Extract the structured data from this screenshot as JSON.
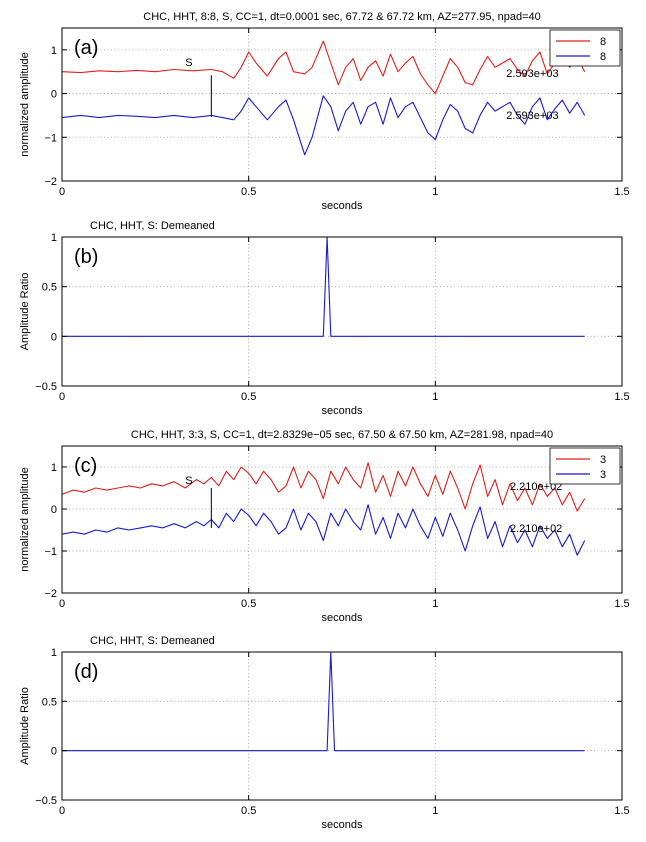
{
  "colors": {
    "red": "#e0201b",
    "blue": "#1a1ad0",
    "axis": "#000000",
    "grid": "#999999"
  },
  "chart_data": [
    {
      "type": "line",
      "panel_label": "(a)",
      "title": "CHC, HHT, 8:8, S, CC=1,  dt=0.0001 sec,  67.72 & 67.72 km, AZ=277.95, npad=40",
      "xlabel": "seconds",
      "ylabel": "normalized amplitude",
      "xlim": [
        0,
        1.5
      ],
      "ylim": [
        -2,
        1.5
      ],
      "xticks": [
        0,
        0.5,
        1,
        1.5
      ],
      "xtick_labels": [
        "0",
        "0.5",
        "1",
        "1.5"
      ],
      "yticks": [
        -2,
        -1,
        0,
        1
      ],
      "ytick_labels": [
        "−2",
        "−1",
        "0",
        "1"
      ],
      "grid": "dotted",
      "legend": {
        "position": "top-right",
        "entries": [
          {
            "label": "8",
            "color": "#e0201b"
          },
          {
            "label": "8",
            "color": "#1a1ad0"
          }
        ]
      },
      "series": [
        {
          "name": "8",
          "color": "#e0201b",
          "x": [
            0,
            0.05,
            0.1,
            0.15,
            0.2,
            0.25,
            0.3,
            0.35,
            0.4,
            0.43,
            0.46,
            0.48,
            0.5,
            0.52,
            0.55,
            0.58,
            0.6,
            0.62,
            0.65,
            0.67,
            0.7,
            0.72,
            0.74,
            0.76,
            0.78,
            0.8,
            0.82,
            0.84,
            0.86,
            0.88,
            0.9,
            0.92,
            0.94,
            0.96,
            0.98,
            1.0,
            1.02,
            1.04,
            1.06,
            1.08,
            1.1,
            1.12,
            1.14,
            1.16,
            1.18,
            1.2,
            1.22,
            1.24,
            1.26,
            1.28,
            1.3,
            1.32,
            1.34,
            1.36,
            1.38,
            1.4
          ],
          "values": [
            0.5,
            0.48,
            0.52,
            0.5,
            0.53,
            0.5,
            0.55,
            0.52,
            0.55,
            0.5,
            0.35,
            0.6,
            0.95,
            0.7,
            0.4,
            0.8,
            0.95,
            0.5,
            0.45,
            0.6,
            1.2,
            0.7,
            0.2,
            0.6,
            0.8,
            0.3,
            0.6,
            0.75,
            0.4,
            0.9,
            0.5,
            0.7,
            0.85,
            0.45,
            0.2,
            0.0,
            0.4,
            0.8,
            0.6,
            0.25,
            0.2,
            0.55,
            0.85,
            0.6,
            0.7,
            0.8,
            0.55,
            0.4,
            0.75,
            0.95,
            0.45,
            0.7,
            0.9,
            0.6,
            0.85,
            0.5
          ]
        },
        {
          "name": "8",
          "color": "#1a1ad0",
          "x": [
            0,
            0.05,
            0.1,
            0.15,
            0.2,
            0.25,
            0.3,
            0.35,
            0.4,
            0.43,
            0.46,
            0.48,
            0.5,
            0.52,
            0.55,
            0.58,
            0.6,
            0.62,
            0.65,
            0.67,
            0.7,
            0.72,
            0.74,
            0.76,
            0.78,
            0.8,
            0.82,
            0.84,
            0.86,
            0.88,
            0.9,
            0.92,
            0.94,
            0.96,
            0.98,
            1.0,
            1.02,
            1.04,
            1.06,
            1.08,
            1.1,
            1.12,
            1.14,
            1.16,
            1.18,
            1.2,
            1.22,
            1.24,
            1.26,
            1.28,
            1.3,
            1.32,
            1.34,
            1.36,
            1.38,
            1.4
          ],
          "values": [
            -0.55,
            -0.5,
            -0.55,
            -0.5,
            -0.52,
            -0.55,
            -0.5,
            -0.55,
            -0.5,
            -0.55,
            -0.6,
            -0.4,
            -0.1,
            -0.3,
            -0.6,
            -0.3,
            -0.15,
            -0.6,
            -1.4,
            -1.0,
            -0.05,
            -0.3,
            -0.85,
            -0.4,
            -0.2,
            -0.7,
            -0.3,
            -0.2,
            -0.7,
            -0.1,
            -0.55,
            -0.3,
            -0.2,
            -0.55,
            -0.9,
            -1.05,
            -0.6,
            -0.25,
            -0.4,
            -0.8,
            -0.9,
            -0.5,
            -0.2,
            -0.4,
            -0.3,
            -0.2,
            -0.5,
            -0.7,
            -0.3,
            -0.1,
            -0.6,
            -0.35,
            -0.15,
            -0.45,
            -0.2,
            -0.5
          ]
        }
      ],
      "annotations": [
        {
          "text": "S",
          "x": 0.33,
          "y": 0.63
        },
        {
          "text": "2.593e+03",
          "x": 1.19,
          "y": 0.38
        },
        {
          "text": "2.593e+03",
          "x": 1.19,
          "y": -0.58
        }
      ],
      "marker_line": {
        "x": 0.4,
        "y1": 0.42,
        "y2": -0.53
      }
    },
    {
      "type": "line",
      "panel_label": "(b)",
      "title": "CHC, HHT, S: Demeaned",
      "xlabel": "seconds",
      "ylabel": "Amplitude Ratio",
      "xlim": [
        0,
        1.5
      ],
      "ylim": [
        -0.5,
        1
      ],
      "xticks": [
        0,
        0.5,
        1,
        1.5
      ],
      "xtick_labels": [
        "0",
        "0.5",
        "1",
        "1.5"
      ],
      "yticks": [
        -0.5,
        0,
        0.5,
        1
      ],
      "ytick_labels": [
        "−0.5",
        "0",
        "0.5",
        "1"
      ],
      "grid": "dotted",
      "series": [
        {
          "color": "#1a1ad0",
          "x": [
            0,
            0.69,
            0.7,
            0.71,
            0.72,
            1.4
          ],
          "values": [
            0,
            0,
            0,
            1,
            0,
            0
          ]
        }
      ]
    },
    {
      "type": "line",
      "panel_label": "(c)",
      "title": "CHC, HHT, 3:3, S, CC=1,  dt=2.8329e−05 sec,  67.50 & 67.50 km, AZ=281.98, npad=40",
      "xlabel": "seconds",
      "ylabel": "normalized amplitude",
      "xlim": [
        0,
        1.5
      ],
      "ylim": [
        -2,
        1.5
      ],
      "xticks": [
        0,
        0.5,
        1,
        1.5
      ],
      "xtick_labels": [
        "0",
        "0.5",
        "1",
        "1.5"
      ],
      "yticks": [
        -2,
        -1,
        0,
        1
      ],
      "ytick_labels": [
        "−2",
        "−1",
        "0",
        "1"
      ],
      "grid": "dotted",
      "legend": {
        "position": "top-right",
        "entries": [
          {
            "label": "3",
            "color": "#e0201b"
          },
          {
            "label": "3",
            "color": "#1a1ad0"
          }
        ]
      },
      "series": [
        {
          "name": "3",
          "color": "#e0201b",
          "x": [
            0,
            0.03,
            0.06,
            0.09,
            0.12,
            0.15,
            0.18,
            0.21,
            0.24,
            0.27,
            0.3,
            0.33,
            0.36,
            0.38,
            0.4,
            0.42,
            0.44,
            0.46,
            0.48,
            0.5,
            0.52,
            0.54,
            0.56,
            0.58,
            0.6,
            0.62,
            0.64,
            0.66,
            0.68,
            0.7,
            0.72,
            0.74,
            0.76,
            0.78,
            0.8,
            0.82,
            0.84,
            0.86,
            0.88,
            0.9,
            0.92,
            0.94,
            0.96,
            0.98,
            1.0,
            1.02,
            1.04,
            1.06,
            1.08,
            1.1,
            1.12,
            1.14,
            1.16,
            1.18,
            1.2,
            1.22,
            1.24,
            1.26,
            1.28,
            1.3,
            1.32,
            1.34,
            1.36,
            1.38,
            1.4
          ],
          "values": [
            0.35,
            0.45,
            0.4,
            0.5,
            0.45,
            0.5,
            0.55,
            0.5,
            0.6,
            0.55,
            0.65,
            0.5,
            0.7,
            0.6,
            0.75,
            0.55,
            0.9,
            0.7,
            1.0,
            0.85,
            0.6,
            0.9,
            0.7,
            0.4,
            0.55,
            1.0,
            0.5,
            0.9,
            0.7,
            0.25,
            0.9,
            0.6,
            1.0,
            0.7,
            0.5,
            1.1,
            0.4,
            0.8,
            0.3,
            0.9,
            0.55,
            1.0,
            0.6,
            0.3,
            0.8,
            0.35,
            0.9,
            0.5,
            0.0,
            0.6,
            1.05,
            0.3,
            0.7,
            0.1,
            0.6,
            0.2,
            0.5,
            0.1,
            0.6,
            0.3,
            0.5,
            0.1,
            0.4,
            -0.05,
            0.25
          ]
        },
        {
          "name": "3",
          "color": "#1a1ad0",
          "x": [
            0,
            0.03,
            0.06,
            0.09,
            0.12,
            0.15,
            0.18,
            0.21,
            0.24,
            0.27,
            0.3,
            0.33,
            0.36,
            0.38,
            0.4,
            0.42,
            0.44,
            0.46,
            0.48,
            0.5,
            0.52,
            0.54,
            0.56,
            0.58,
            0.6,
            0.62,
            0.64,
            0.66,
            0.68,
            0.7,
            0.72,
            0.74,
            0.76,
            0.78,
            0.8,
            0.82,
            0.84,
            0.86,
            0.88,
            0.9,
            0.92,
            0.94,
            0.96,
            0.98,
            1.0,
            1.02,
            1.04,
            1.06,
            1.08,
            1.1,
            1.12,
            1.14,
            1.16,
            1.18,
            1.2,
            1.22,
            1.24,
            1.26,
            1.28,
            1.3,
            1.32,
            1.34,
            1.36,
            1.38,
            1.4
          ],
          "values": [
            -0.6,
            -0.55,
            -0.6,
            -0.5,
            -0.55,
            -0.45,
            -0.5,
            -0.45,
            -0.4,
            -0.45,
            -0.35,
            -0.45,
            -0.3,
            -0.4,
            -0.25,
            -0.45,
            -0.1,
            -0.3,
            0.0,
            -0.15,
            -0.4,
            -0.1,
            -0.3,
            -0.6,
            -0.45,
            0.0,
            -0.5,
            -0.1,
            -0.3,
            -0.75,
            -0.1,
            -0.4,
            0.0,
            -0.3,
            -0.5,
            0.1,
            -0.6,
            -0.2,
            -0.7,
            -0.1,
            -0.45,
            0.0,
            -0.4,
            -0.7,
            -0.2,
            -0.65,
            -0.1,
            -0.5,
            -1.0,
            -0.4,
            0.05,
            -0.7,
            -0.3,
            -0.9,
            -0.4,
            -0.8,
            -0.5,
            -0.9,
            -0.4,
            -0.7,
            -0.5,
            -0.9,
            -0.6,
            -1.1,
            -0.75
          ]
        }
      ],
      "annotations": [
        {
          "text": "S",
          "x": 0.33,
          "y": 0.6
        },
        {
          "text": "2.210e+02",
          "x": 1.2,
          "y": 0.45
        },
        {
          "text": "2.210e+02",
          "x": 1.2,
          "y": -0.55
        }
      ],
      "marker_line": {
        "x": 0.4,
        "y1": 0.5,
        "y2": -0.45
      }
    },
    {
      "type": "line",
      "panel_label": "(d)",
      "title": "CHC, HHT, S: Demeaned",
      "xlabel": "seconds",
      "ylabel": "Amplitude Ratio",
      "xlim": [
        0,
        1.5
      ],
      "ylim": [
        -0.5,
        1
      ],
      "xticks": [
        0,
        0.5,
        1,
        1.5
      ],
      "xtick_labels": [
        "0",
        "0.5",
        "1",
        "1.5"
      ],
      "yticks": [
        -0.5,
        0,
        0.5,
        1
      ],
      "ytick_labels": [
        "−0.5",
        "0",
        "0.5",
        "1"
      ],
      "grid": "dotted",
      "series": [
        {
          "color": "#1a1ad0",
          "x": [
            0,
            0.7,
            0.71,
            0.72,
            0.73,
            1.4
          ],
          "values": [
            0,
            0,
            0,
            1,
            0,
            0
          ]
        }
      ]
    }
  ]
}
